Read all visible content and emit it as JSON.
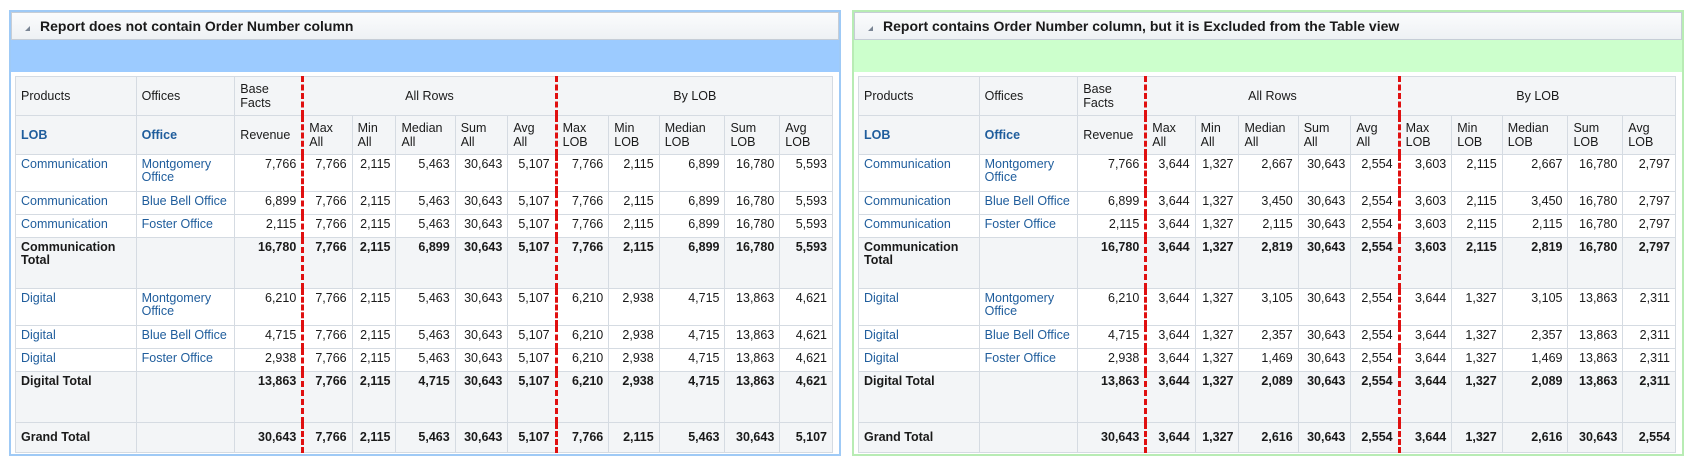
{
  "panels": [
    {
      "title": "Report does not contain Order Number column",
      "headers": {
        "products": "Products",
        "offices": "Offices",
        "base_facts": "Base Facts",
        "all_rows": "All Rows",
        "by_lob": "By LOB",
        "lob": "LOB",
        "office": "Office",
        "revenue": "Revenue",
        "cols": [
          "Max All",
          "Min All",
          "Median All",
          "Sum All",
          "Avg All",
          "Max LOB",
          "Min LOB",
          "Median LOB",
          "Sum LOB",
          "Avg LOB"
        ]
      },
      "rows": [
        {
          "lob": "Communication",
          "office": "Montgomery Office",
          "vals": [
            "7,766",
            "7,766",
            "2,115",
            "5,463",
            "30,643",
            "5,107",
            "7,766",
            "2,115",
            "6,899",
            "16,780",
            "5,593"
          ]
        },
        {
          "lob": "Communication",
          "office": "Blue Bell Office",
          "vals": [
            "6,899",
            "7,766",
            "2,115",
            "5,463",
            "30,643",
            "5,107",
            "7,766",
            "2,115",
            "6,899",
            "16,780",
            "5,593"
          ]
        },
        {
          "lob": "Communication",
          "office": "Foster Office",
          "vals": [
            "2,115",
            "7,766",
            "2,115",
            "5,463",
            "30,643",
            "5,107",
            "7,766",
            "2,115",
            "6,899",
            "16,780",
            "5,593"
          ]
        },
        {
          "label": "Communication Total",
          "vals": [
            "16,780",
            "7,766",
            "2,115",
            "6,899",
            "30,643",
            "5,107",
            "7,766",
            "2,115",
            "6,899",
            "16,780",
            "5,593"
          ]
        },
        {
          "lob": "Digital",
          "office": "Montgomery Office",
          "vals": [
            "6,210",
            "7,766",
            "2,115",
            "5,463",
            "30,643",
            "5,107",
            "6,210",
            "2,938",
            "4,715",
            "13,863",
            "4,621"
          ]
        },
        {
          "lob": "Digital",
          "office": "Blue Bell Office",
          "vals": [
            "4,715",
            "7,766",
            "2,115",
            "5,463",
            "30,643",
            "5,107",
            "6,210",
            "2,938",
            "4,715",
            "13,863",
            "4,621"
          ]
        },
        {
          "lob": "Digital",
          "office": "Foster Office",
          "vals": [
            "2,938",
            "7,766",
            "2,115",
            "5,463",
            "30,643",
            "5,107",
            "6,210",
            "2,938",
            "4,715",
            "13,863",
            "4,621"
          ]
        },
        {
          "label": "Digital Total",
          "vals": [
            "13,863",
            "7,766",
            "2,115",
            "4,715",
            "30,643",
            "5,107",
            "6,210",
            "2,938",
            "4,715",
            "13,863",
            "4,621"
          ]
        },
        {
          "label": "Grand Total",
          "vals": [
            "30,643",
            "7,766",
            "2,115",
            "5,463",
            "30,643",
            "5,107",
            "7,766",
            "2,115",
            "5,463",
            "30,643",
            "5,107"
          ]
        }
      ]
    },
    {
      "title": "Report contains Order Number column, but it is Excluded from the Table view",
      "headers": {
        "products": "Products",
        "offices": "Offices",
        "base_facts": "Base Facts",
        "all_rows": "All Rows",
        "by_lob": "By LOB",
        "lob": "LOB",
        "office": "Office",
        "revenue": "Revenue",
        "cols": [
          "Max All",
          "Min All",
          "Median All",
          "Sum All",
          "Avg All",
          "Max LOB",
          "Min LOB",
          "Median LOB",
          "Sum LOB",
          "Avg LOB"
        ]
      },
      "rows": [
        {
          "lob": "Communication",
          "office": "Montgomery Office",
          "vals": [
            "7,766",
            "3,644",
            "1,327",
            "2,667",
            "30,643",
            "2,554",
            "3,603",
            "2,115",
            "2,667",
            "16,780",
            "2,797"
          ]
        },
        {
          "lob": "Communication",
          "office": "Blue Bell Office",
          "vals": [
            "6,899",
            "3,644",
            "1,327",
            "3,450",
            "30,643",
            "2,554",
            "3,603",
            "2,115",
            "3,450",
            "16,780",
            "2,797"
          ]
        },
        {
          "lob": "Communication",
          "office": "Foster Office",
          "vals": [
            "2,115",
            "3,644",
            "1,327",
            "2,115",
            "30,643",
            "2,554",
            "3,603",
            "2,115",
            "2,115",
            "16,780",
            "2,797"
          ]
        },
        {
          "label": "Communication Total",
          "vals": [
            "16,780",
            "3,644",
            "1,327",
            "2,819",
            "30,643",
            "2,554",
            "3,603",
            "2,115",
            "2,819",
            "16,780",
            "2,797"
          ]
        },
        {
          "lob": "Digital",
          "office": "Montgomery Office",
          "vals": [
            "6,210",
            "3,644",
            "1,327",
            "3,105",
            "30,643",
            "2,554",
            "3,644",
            "1,327",
            "3,105",
            "13,863",
            "2,311"
          ]
        },
        {
          "lob": "Digital",
          "office": "Blue Bell Office",
          "vals": [
            "4,715",
            "3,644",
            "1,327",
            "2,357",
            "30,643",
            "2,554",
            "3,644",
            "1,327",
            "2,357",
            "13,863",
            "2,311"
          ]
        },
        {
          "lob": "Digital",
          "office": "Foster Office",
          "vals": [
            "2,938",
            "3,644",
            "1,327",
            "1,469",
            "30,643",
            "2,554",
            "3,644",
            "1,327",
            "1,469",
            "13,863",
            "2,311"
          ]
        },
        {
          "label": "Digital Total",
          "vals": [
            "13,863",
            "3,644",
            "1,327",
            "2,089",
            "30,643",
            "2,554",
            "3,644",
            "1,327",
            "2,089",
            "13,863",
            "2,311"
          ]
        },
        {
          "label": "Grand Total",
          "vals": [
            "30,643",
            "3,644",
            "1,327",
            "2,616",
            "30,643",
            "2,554",
            "3,644",
            "1,327",
            "2,616",
            "30,643",
            "2,554"
          ]
        }
      ]
    }
  ]
}
